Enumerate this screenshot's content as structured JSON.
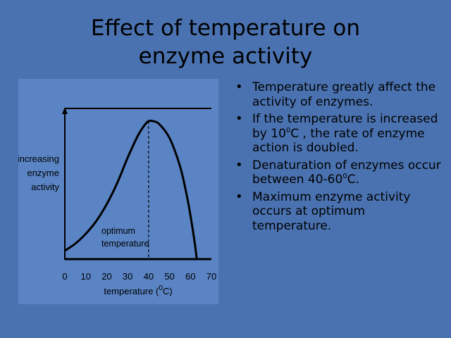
{
  "slide": {
    "title_line1": "Effect of temperature on",
    "title_line2": "enzyme activity"
  },
  "bullets": [
    [
      "Temperature greatly affect the activity of enzymes."
    ],
    [
      "If the temperature is increased by 10",
      "0",
      "C , the rate of enzyme action is doubled."
    ],
    [
      "Denaturation of enzymes occur between 40-60",
      "0",
      "C."
    ],
    [
      "Maximum enzyme activity occurs at optimum temperature."
    ]
  ],
  "chart_data": {
    "type": "line",
    "ylabel": [
      "increasing",
      "enzyme",
      "activity"
    ],
    "xlabel": "temperature (°C)",
    "xlabel_parts": [
      "temperature (",
      "0",
      "C)"
    ],
    "x_ticks": [
      0,
      10,
      20,
      30,
      40,
      50,
      60,
      70
    ],
    "xlim": [
      0,
      70
    ],
    "ylim": [
      0,
      1
    ],
    "y_ticks_shown": false,
    "grid": false,
    "series": [
      {
        "x": [
          0,
          5,
          10,
          15,
          20,
          25,
          30,
          35,
          38,
          40,
          42,
          45,
          50,
          55,
          58,
          60,
          62,
          63
        ],
        "y": [
          0.06,
          0.11,
          0.18,
          0.27,
          0.39,
          0.54,
          0.72,
          0.88,
          0.95,
          0.98,
          0.98,
          0.96,
          0.86,
          0.66,
          0.47,
          0.31,
          0.12,
          0.0
        ]
      }
    ],
    "annotation": {
      "label": [
        "optimum",
        "temperature"
      ],
      "x": 40
    }
  }
}
